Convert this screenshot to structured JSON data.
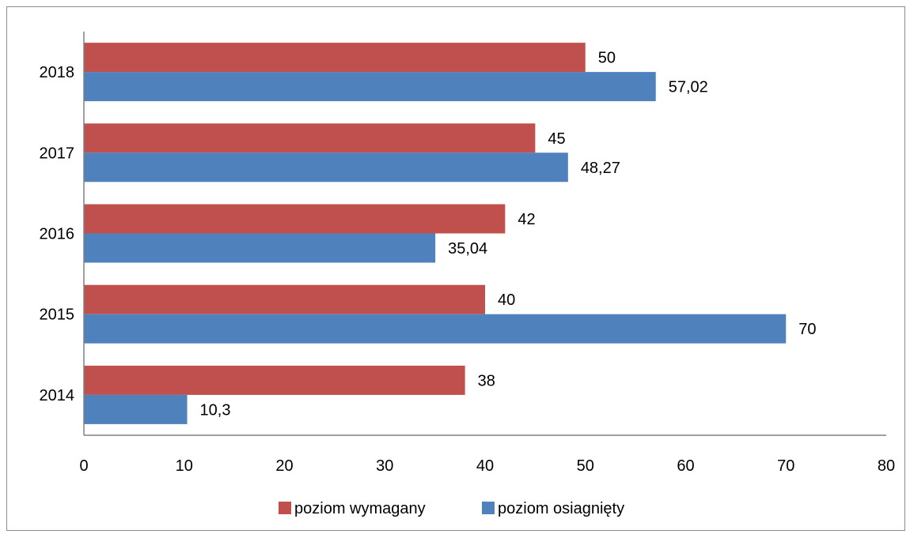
{
  "chart_data": {
    "type": "bar",
    "orientation": "horizontal",
    "categories": [
      "2014",
      "2015",
      "2016",
      "2017",
      "2018"
    ],
    "series": [
      {
        "name": "poziom wymagany",
        "color": "#c0504d",
        "values": [
          38,
          40,
          42,
          45,
          50
        ],
        "labels": [
          "38",
          "40",
          "42",
          "45",
          "50"
        ]
      },
      {
        "name": "poziom osiagnięty",
        "color": "#4f81bd",
        "values": [
          10.3,
          70,
          35.04,
          48.27,
          57.02
        ],
        "labels": [
          "10,3",
          "70",
          "35,04",
          "48,27",
          "57,02"
        ]
      }
    ],
    "xlim": [
      0,
      80
    ],
    "xticks": [
      0,
      10,
      20,
      30,
      40,
      50,
      60,
      70,
      80
    ],
    "grid": false,
    "legend": "bottom"
  }
}
